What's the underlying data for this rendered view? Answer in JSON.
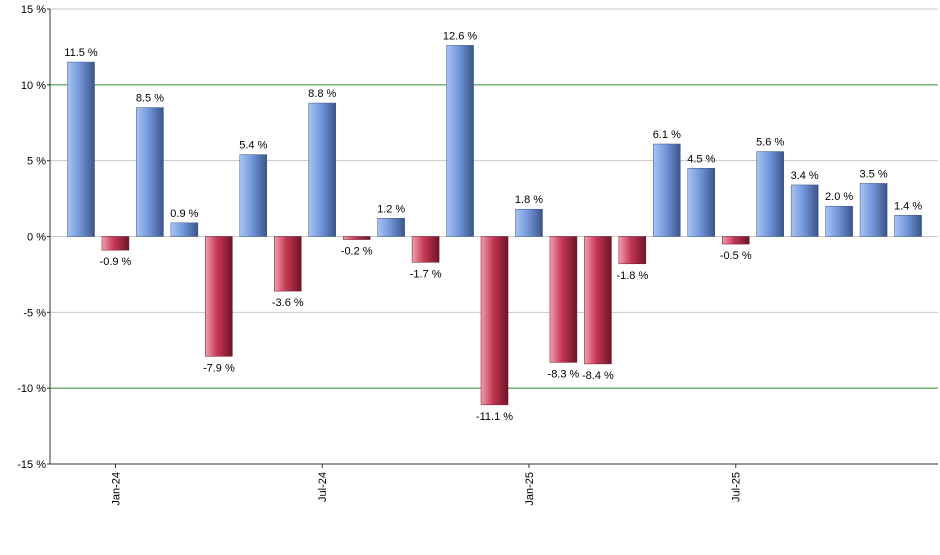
{
  "chart_data": {
    "type": "bar",
    "categories": [
      null,
      "Jan-24",
      null,
      null,
      null,
      null,
      null,
      "Jul-24",
      null,
      null,
      null,
      null,
      null,
      "Jan-25",
      null,
      null,
      null,
      null,
      null,
      "Jul-25",
      null,
      null,
      null,
      null,
      null
    ],
    "values": [
      11.5,
      -0.9,
      8.5,
      0.9,
      -7.9,
      5.4,
      -3.6,
      8.8,
      -0.2,
      1.2,
      -1.7,
      12.6,
      -11.1,
      1.8,
      -8.3,
      -8.4,
      -1.8,
      6.1,
      4.5,
      -0.5,
      5.6,
      3.4,
      2.0,
      3.5,
      1.4
    ],
    "value_labels": [
      "11.5 %",
      "-0.9 %",
      "8.5 %",
      "0.9 %",
      "-7.9 %",
      "5.4 %",
      "-3.6 %",
      "8.8 %",
      "-0.2 %",
      "1.2 %",
      "-1.7 %",
      "12.6 %",
      "-11.1 %",
      "1.8 %",
      "-8.3 %",
      "-8.4 %",
      "-1.8 %",
      "6.1 %",
      "4.5 %",
      "-0.5 %",
      "5.6 %",
      "3.4 %",
      "2.0 %",
      "3.5 %",
      "1.4 %"
    ],
    "color": "#7298dc",
    "negative_color": "#c43652",
    "ylim": [
      -15,
      15
    ],
    "yticks": [
      {
        "value": -15,
        "label": "-15 %"
      },
      {
        "value": -10,
        "label": "-10 %"
      },
      {
        "value": -5,
        "label": "-5 %"
      },
      {
        "value": 0,
        "label": "0 %"
      },
      {
        "value": 5,
        "label": "5 %"
      },
      {
        "value": 10,
        "label": "10 %"
      },
      {
        "value": 15,
        "label": "15 %"
      }
    ],
    "grid": true,
    "grid_color": "#c8c8c8",
    "reference_lines": [
      -10,
      10
    ],
    "reference_color": "#2e8b2e"
  }
}
